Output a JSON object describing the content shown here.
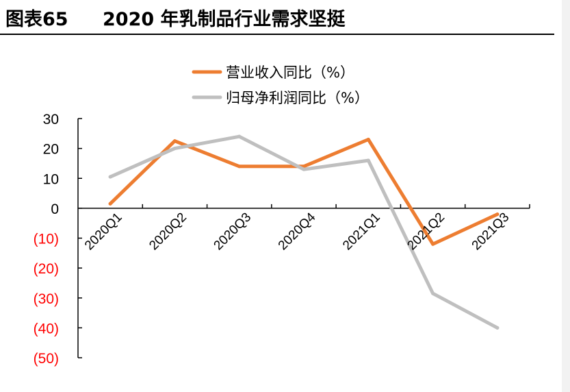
{
  "header": {
    "figure_label": "图表65",
    "title": "2020 年乳制品行业需求坚挺"
  },
  "chart_data": {
    "type": "line",
    "categories": [
      "2020Q1",
      "2020Q2",
      "2020Q3",
      "2020Q4",
      "2021Q1",
      "2021Q2",
      "2021Q3"
    ],
    "series": [
      {
        "name": "营业收入同比（%）",
        "color": "#ED7D31",
        "values": [
          1.5,
          22.5,
          14,
          14,
          23,
          -12,
          -2
        ]
      },
      {
        "name": "归母净利润同比（%）",
        "color": "#BFBFBF",
        "values": [
          10.5,
          20,
          24,
          13,
          16,
          -28.5,
          -40
        ]
      }
    ],
    "yticks": [
      {
        "value": 30,
        "label": "30"
      },
      {
        "value": 20,
        "label": "20"
      },
      {
        "value": 10,
        "label": "10"
      },
      {
        "value": 0,
        "label": "0"
      },
      {
        "value": -10,
        "label": "(10)"
      },
      {
        "value": -20,
        "label": "(20)"
      },
      {
        "value": -30,
        "label": "(30)"
      },
      {
        "value": -40,
        "label": "(40)"
      },
      {
        "value": -50,
        "label": "(50)"
      }
    ],
    "ylim": [
      -50,
      30
    ],
    "negative_label_color": "#FF0000",
    "positive_label_color": "#000000",
    "legend_position": "top-center",
    "grid": false
  }
}
